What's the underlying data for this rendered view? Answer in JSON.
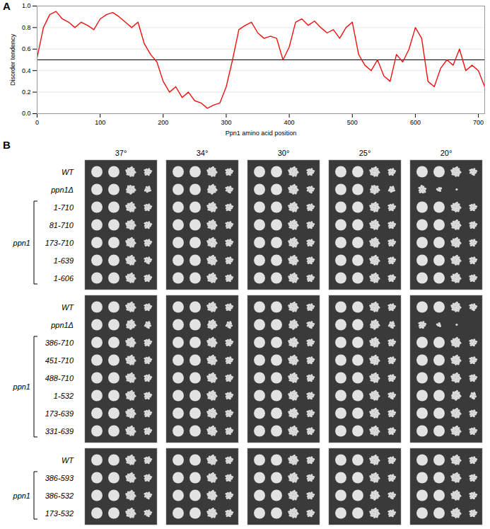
{
  "chart_data": [
    {
      "type": "line",
      "panel_label": "A",
      "x_label": "Ppn1 amino acid position",
      "y_label": "Disorder tendency",
      "x": [
        0,
        10,
        20,
        30,
        40,
        50,
        60,
        70,
        80,
        90,
        100,
        110,
        120,
        130,
        140,
        150,
        160,
        170,
        180,
        190,
        200,
        210,
        220,
        230,
        240,
        250,
        260,
        270,
        280,
        290,
        300,
        310,
        320,
        330,
        340,
        350,
        360,
        370,
        380,
        390,
        400,
        410,
        420,
        430,
        440,
        450,
        460,
        470,
        480,
        490,
        500,
        510,
        520,
        530,
        540,
        550,
        560,
        570,
        580,
        590,
        600,
        610,
        620,
        630,
        640,
        650,
        660,
        670,
        680,
        690,
        700,
        710
      ],
      "values": [
        0.52,
        0.8,
        0.92,
        0.95,
        0.88,
        0.85,
        0.8,
        0.85,
        0.82,
        0.78,
        0.88,
        0.92,
        0.94,
        0.9,
        0.85,
        0.8,
        0.85,
        0.65,
        0.55,
        0.48,
        0.3,
        0.2,
        0.25,
        0.15,
        0.2,
        0.12,
        0.1,
        0.05,
        0.08,
        0.1,
        0.25,
        0.5,
        0.78,
        0.82,
        0.85,
        0.75,
        0.7,
        0.72,
        0.7,
        0.5,
        0.62,
        0.85,
        0.88,
        0.82,
        0.86,
        0.8,
        0.75,
        0.78,
        0.7,
        0.8,
        0.85,
        0.55,
        0.45,
        0.4,
        0.5,
        0.35,
        0.3,
        0.55,
        0.48,
        0.6,
        0.8,
        0.7,
        0.3,
        0.25,
        0.42,
        0.5,
        0.45,
        0.6,
        0.4,
        0.45,
        0.4,
        0.25
      ],
      "color": "#ee1111",
      "threshold": 0.5,
      "xlim": [
        0,
        710
      ],
      "xticks": [
        0,
        100,
        200,
        300,
        400,
        500,
        600,
        700
      ],
      "ylim": [
        0,
        1
      ],
      "yticks": [
        0,
        0.2,
        0.4,
        0.6,
        0.8,
        1
      ],
      "grid": true
    },
    {
      "type": "spot_assay",
      "panel_label": "B",
      "columns": [
        "37°",
        "34°",
        "30°",
        "25°",
        "20°"
      ],
      "blocks": [
        {
          "rows": [
            {
              "label": "WT",
              "growth": [
                [
                  1,
                  1,
                  0.85,
                  0.5
                ],
                [
                  1,
                  1,
                  0.85,
                  0.5
                ],
                [
                  1,
                  1,
                  0.85,
                  0.5
                ],
                [
                  1,
                  1,
                  0.85,
                  0.5
                ],
                [
                  1,
                  1,
                  0.85,
                  0.45
                ]
              ]
            },
            {
              "label": "ppn1Δ",
              "growth": [
                [
                  1,
                  1,
                  0.75,
                  0.35
                ],
                [
                  1,
                  1,
                  0.8,
                  0.45
                ],
                [
                  1,
                  1,
                  0.85,
                  0.45
                ],
                [
                  1,
                  1,
                  0.75,
                  0.35
                ],
                [
                  0.55,
                  0.2,
                  0.03,
                  0
                ]
              ]
            }
          ],
          "group": {
            "label": "ppn1",
            "rows": [
              {
                "label": "1-710",
                "growth": [
                  [
                    1,
                    1,
                    0.85,
                    0.5
                  ],
                  [
                    1,
                    1,
                    0.85,
                    0.5
                  ],
                  [
                    1,
                    1,
                    0.85,
                    0.5
                  ],
                  [
                    1,
                    1,
                    0.85,
                    0.5
                  ],
                  [
                    1,
                    1,
                    0.85,
                    0.5
                  ]
                ]
              },
              {
                "label": "81-710",
                "growth": [
                  [
                    1,
                    1,
                    0.85,
                    0.5
                  ],
                  [
                    1,
                    1,
                    0.85,
                    0.5
                  ],
                  [
                    1,
                    1,
                    0.85,
                    0.5
                  ],
                  [
                    1,
                    1,
                    0.85,
                    0.5
                  ],
                  [
                    1,
                    1,
                    0.85,
                    0.5
                  ]
                ]
              },
              {
                "label": "173-710",
                "growth": [
                  [
                    1,
                    1,
                    0.85,
                    0.5
                  ],
                  [
                    1,
                    1,
                    0.85,
                    0.5
                  ],
                  [
                    1,
                    1,
                    0.85,
                    0.5
                  ],
                  [
                    1,
                    1,
                    0.85,
                    0.5
                  ],
                  [
                    1,
                    1,
                    0.85,
                    0.5
                  ]
                ]
              },
              {
                "label": "1-639",
                "growth": [
                  [
                    1,
                    1,
                    0.85,
                    0.45
                  ],
                  [
                    1,
                    1,
                    0.85,
                    0.5
                  ],
                  [
                    1,
                    1,
                    0.85,
                    0.5
                  ],
                  [
                    1,
                    1,
                    0.85,
                    0.5
                  ],
                  [
                    1,
                    1,
                    0.85,
                    0.5
                  ]
                ]
              },
              {
                "label": "1-606",
                "growth": [
                  [
                    1,
                    1,
                    0.85,
                    0.5
                  ],
                  [
                    1,
                    1,
                    0.85,
                    0.5
                  ],
                  [
                    1,
                    1,
                    0.85,
                    0.5
                  ],
                  [
                    1,
                    1,
                    0.85,
                    0.5
                  ],
                  [
                    1,
                    1,
                    0.85,
                    0.5
                  ]
                ]
              }
            ]
          }
        },
        {
          "rows": [
            {
              "label": "WT",
              "growth": [
                [
                  1,
                  1,
                  0.85,
                  0.5
                ],
                [
                  1,
                  1,
                  0.85,
                  0.5
                ],
                [
                  1,
                  1,
                  0.85,
                  0.5
                ],
                [
                  1,
                  1,
                  0.85,
                  0.5
                ],
                [
                  1,
                  1,
                  0.85,
                  0.45
                ]
              ]
            },
            {
              "label": "ppn1Δ",
              "growth": [
                [
                  1,
                  1,
                  0.8,
                  0.4
                ],
                [
                  1,
                  1,
                  0.8,
                  0.4
                ],
                [
                  1,
                  1,
                  0.8,
                  0.45
                ],
                [
                  1,
                  1,
                  0.8,
                  0.4
                ],
                [
                  0.5,
                  0.15,
                  0.02,
                  0
                ]
              ]
            }
          ],
          "group": {
            "label": "ppn1",
            "rows": [
              {
                "label": "386-710",
                "growth": [
                  [
                    1,
                    1,
                    0.85,
                    0.5
                  ],
                  [
                    1,
                    1,
                    0.85,
                    0.5
                  ],
                  [
                    1,
                    1,
                    0.85,
                    0.5
                  ],
                  [
                    1,
                    1,
                    0.85,
                    0.5
                  ],
                  [
                    1,
                    1,
                    0.85,
                    0.5
                  ]
                ]
              },
              {
                "label": "451-710",
                "growth": [
                  [
                    1,
                    1,
                    0.85,
                    0.5
                  ],
                  [
                    1,
                    1,
                    0.85,
                    0.5
                  ],
                  [
                    1,
                    1,
                    0.85,
                    0.5
                  ],
                  [
                    1,
                    1,
                    0.85,
                    0.5
                  ],
                  [
                    1,
                    1,
                    0.85,
                    0.5
                  ]
                ]
              },
              {
                "label": "488-710",
                "growth": [
                  [
                    1,
                    1,
                    0.85,
                    0.5
                  ],
                  [
                    1,
                    1,
                    0.85,
                    0.5
                  ],
                  [
                    1,
                    1,
                    0.85,
                    0.5
                  ],
                  [
                    1,
                    1,
                    0.85,
                    0.5
                  ],
                  [
                    1,
                    1,
                    0.85,
                    0.5
                  ]
                ]
              },
              {
                "label": "1-532",
                "growth": [
                  [
                    1,
                    1,
                    0.85,
                    0.5
                  ],
                  [
                    1,
                    1,
                    0.85,
                    0.5
                  ],
                  [
                    1,
                    1,
                    0.85,
                    0.5
                  ],
                  [
                    1,
                    1,
                    0.85,
                    0.45
                  ],
                  [
                    1,
                    1,
                    0.8,
                    0.4
                  ]
                ]
              },
              {
                "label": "173-639",
                "growth": [
                  [
                    1,
                    1,
                    0.85,
                    0.5
                  ],
                  [
                    1,
                    1,
                    0.85,
                    0.5
                  ],
                  [
                    1,
                    1,
                    0.85,
                    0.5
                  ],
                  [
                    1,
                    1,
                    0.85,
                    0.5
                  ],
                  [
                    1,
                    1,
                    0.85,
                    0.5
                  ]
                ]
              },
              {
                "label": "331-639",
                "growth": [
                  [
                    1,
                    1,
                    0.85,
                    0.5
                  ],
                  [
                    1,
                    1,
                    0.85,
                    0.5
                  ],
                  [
                    1,
                    1,
                    0.85,
                    0.5
                  ],
                  [
                    1,
                    1,
                    0.85,
                    0.5
                  ],
                  [
                    1,
                    1,
                    0.85,
                    0.5
                  ]
                ]
              }
            ]
          }
        },
        {
          "rows": [
            {
              "label": "WT",
              "growth": [
                [
                  1,
                  1,
                  0.85,
                  0.5
                ],
                [
                  1,
                  1,
                  0.85,
                  0.5
                ],
                [
                  1,
                  1,
                  0.85,
                  0.5
                ],
                [
                  1,
                  1,
                  0.85,
                  0.5
                ],
                [
                  1,
                  1,
                  0.85,
                  0.5
                ]
              ]
            }
          ],
          "group": {
            "label": "ppn1",
            "rows": [
              {
                "label": "386-593",
                "growth": [
                  [
                    1,
                    1,
                    0.85,
                    0.5
                  ],
                  [
                    1,
                    1,
                    0.85,
                    0.5
                  ],
                  [
                    1,
                    1,
                    0.85,
                    0.5
                  ],
                  [
                    1,
                    1,
                    0.85,
                    0.5
                  ],
                  [
                    1,
                    1,
                    0.85,
                    0.5
                  ]
                ]
              },
              {
                "label": "386-532",
                "growth": [
                  [
                    1,
                    1,
                    0.85,
                    0.45
                  ],
                  [
                    1,
                    1,
                    0.85,
                    0.5
                  ],
                  [
                    1,
                    1,
                    0.85,
                    0.5
                  ],
                  [
                    1,
                    1,
                    0.8,
                    0.45
                  ],
                  [
                    1,
                    1,
                    0.85,
                    0.5
                  ]
                ]
              },
              {
                "label": "173-532",
                "growth": [
                  [
                    1,
                    1,
                    0.85,
                    0.45
                  ],
                  [
                    1,
                    1,
                    0.85,
                    0.5
                  ],
                  [
                    1,
                    1,
                    0.85,
                    0.5
                  ],
                  [
                    1,
                    1,
                    0.85,
                    0.5
                  ],
                  [
                    1,
                    1,
                    0.85,
                    0.5
                  ]
                ]
              }
            ]
          }
        }
      ]
    }
  ]
}
